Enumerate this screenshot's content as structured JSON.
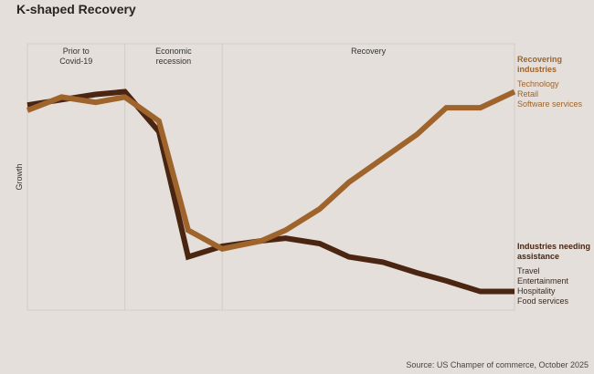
{
  "chart_data": {
    "type": "line",
    "title": "K-shaped Recovery",
    "y_label": "Growth",
    "source": "Source: US Champer of commerce, October 2025",
    "x": [
      0,
      7,
      14,
      20,
      27,
      33,
      40,
      48,
      53,
      60,
      66,
      73,
      80,
      86,
      93,
      100
    ],
    "xlim": [
      0,
      100
    ],
    "ylim": [
      0,
      100
    ],
    "phases": [
      {
        "label": [
          "Prior to",
          "Covid-19"
        ],
        "start": 0,
        "end": 20
      },
      {
        "label": [
          "Economic",
          "recession"
        ],
        "start": 20,
        "end": 40
      },
      {
        "label": [
          "Recovery"
        ],
        "start": 40,
        "end": 100
      }
    ],
    "series": [
      {
        "name": "Industries needing assistance",
        "color": "#4a2511",
        "members": [
          "Travel",
          "Entertainment",
          "Hospitality",
          "Food services"
        ],
        "values": [
          77,
          79,
          81,
          82,
          67,
          20,
          24,
          26,
          27,
          25,
          20,
          18,
          14,
          11,
          7,
          7
        ]
      },
      {
        "name": "Recovering industries",
        "color": "#9e642c",
        "members": [
          "Technology",
          "Retail",
          "Software services"
        ],
        "values": [
          75,
          80,
          78,
          80,
          71,
          30,
          23,
          26,
          30,
          38,
          48,
          57,
          66,
          76,
          76,
          82
        ]
      }
    ]
  }
}
